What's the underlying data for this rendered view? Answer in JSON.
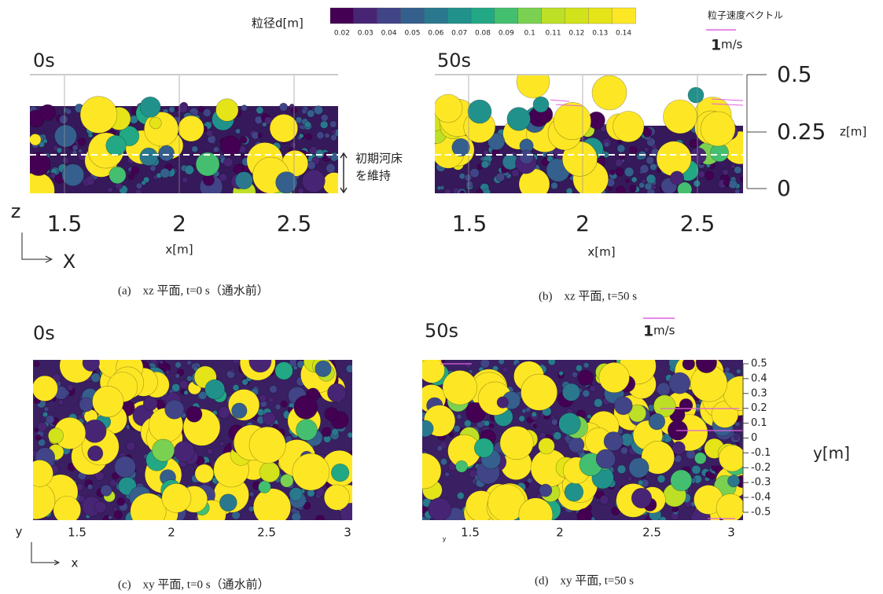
{
  "colorbar": {
    "title": "粒径d[m]",
    "ticks": [
      "0.02",
      "0.03",
      "0.04",
      "0.05",
      "0.06",
      "0.07",
      "0.08",
      "0.09",
      "0.1",
      "0.11",
      "0.12",
      "0.13",
      "0.14"
    ]
  },
  "vector_legend": {
    "title": "粒子速度ベクトル",
    "value": "1",
    "unit": "m/s"
  },
  "panel_a": {
    "label": "0s",
    "xticks": [
      "1.5",
      "2",
      "2.5"
    ],
    "xlabel": "x[m]",
    "axis_z": "z",
    "axis_x": "X",
    "annotation_1": "初期河床",
    "annotation_2": "を維持",
    "caption": "(a)　xz 平面, t=0 s（通水前）"
  },
  "panel_b": {
    "label": "50s",
    "xticks": [
      "1.5",
      "2",
      "2.5"
    ],
    "xlabel": "x[m]",
    "zticks": [
      "0.5",
      "0.25",
      "0"
    ],
    "zlabel": "z[m]",
    "caption": "(b)　xz 平面, t=50 s"
  },
  "panel_c": {
    "label": "0s",
    "xticks": [
      "1.5",
      "2",
      "2.5",
      "3"
    ],
    "axis_y": "y",
    "axis_x": "x",
    "caption": "(c)　xy 平面, t=0 s（通水前）"
  },
  "panel_d": {
    "label": "50s",
    "vector_value": "1",
    "vector_unit": "m/s",
    "xticks": [
      "1.5",
      "2",
      "2.5",
      "3"
    ],
    "yticks": [
      "0.5",
      "0.4",
      "0.3",
      "0.2",
      "0.1",
      "0",
      "-0.1",
      "-0.2",
      "-0.3",
      "-0.4",
      "-0.5"
    ],
    "ylabel": "y[m]",
    "axis_y": "y",
    "caption": "(d)　xy 平面, t=50 s"
  }
}
